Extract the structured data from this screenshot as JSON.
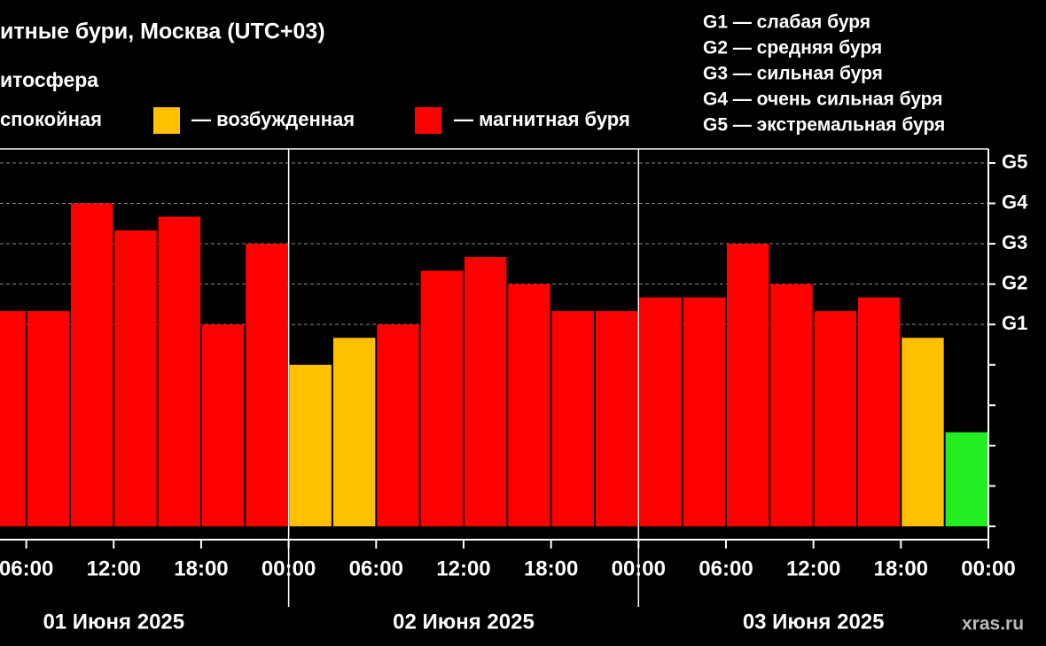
{
  "chart_data": {
    "type": "bar",
    "title": "итные бури, Москва (UTC+03)",
    "subtitle": "итосфера",
    "legend": [
      {
        "label": "спокойная"
      },
      {
        "label": "— возбужденная",
        "color": "#ffc000"
      },
      {
        "label": "— магнитная буря",
        "color": "#ff0000"
      }
    ],
    "scale_legend": [
      "G1 — слабая буря",
      "G2 — средняя буря",
      "G3 — сильная буря",
      "G4 — очень сильная буря",
      "G5 — экстремальная буря"
    ],
    "x": [
      3,
      6,
      9,
      12,
      15,
      18,
      21,
      24,
      27,
      30,
      33,
      36,
      39,
      42,
      45,
      48,
      51,
      54,
      57,
      60,
      63,
      66,
      69
    ],
    "bar_width": 3,
    "values": [
      5.33,
      5.33,
      8.0,
      7.33,
      7.67,
      5.0,
      7.0,
      4.0,
      4.67,
      5.0,
      6.33,
      6.67,
      6.0,
      5.33,
      5.33,
      5.67,
      5.67,
      7.0,
      6.0,
      5.33,
      5.67,
      4.67,
      2.33
    ],
    "colors": [
      "#ff0000",
      "#ff0000",
      "#ff0000",
      "#ff0000",
      "#ff0000",
      "#ff0000",
      "#ff0000",
      "#ffc000",
      "#ffc000",
      "#ff0000",
      "#ff0000",
      "#ff0000",
      "#ff0000",
      "#ff0000",
      "#ff0000",
      "#ff0000",
      "#ff0000",
      "#ff0000",
      "#ff0000",
      "#ff0000",
      "#ff0000",
      "#ffc000",
      "#22ee22"
    ],
    "xlim": [
      4.2,
      72
    ],
    "xticks": [
      {
        "value": 6,
        "label": "06:00"
      },
      {
        "value": 12,
        "label": "12:00"
      },
      {
        "value": 18,
        "label": "18:00"
      },
      {
        "value": 24,
        "label": "00:00"
      },
      {
        "value": 30,
        "label": "06:00"
      },
      {
        "value": 36,
        "label": "12:00"
      },
      {
        "value": 42,
        "label": "18:00"
      },
      {
        "value": 48,
        "label": "00:00"
      },
      {
        "value": 54,
        "label": "06:00"
      },
      {
        "value": 60,
        "label": "12:00"
      },
      {
        "value": 66,
        "label": "18:00"
      },
      {
        "value": 72,
        "label": "00:00"
      }
    ],
    "day_labels": [
      {
        "value": 12,
        "label": "01 Июня 2025"
      },
      {
        "value": 36,
        "label": "02 Июня 2025"
      },
      {
        "value": 60,
        "label": "03 Июня 2025"
      }
    ],
    "day_separators": [
      24,
      48
    ],
    "ylim": [
      -0.33,
      9.35
    ],
    "yticks": [
      {
        "value": 5,
        "label": "G1"
      },
      {
        "value": 6,
        "label": "G2"
      },
      {
        "value": 7,
        "label": "G3"
      },
      {
        "value": 8,
        "label": "G4"
      },
      {
        "value": 9,
        "label": "G5"
      }
    ],
    "yminor_ticks": [
      0,
      1,
      2,
      3,
      4
    ],
    "grid": true,
    "watermark": "xras.ru"
  }
}
